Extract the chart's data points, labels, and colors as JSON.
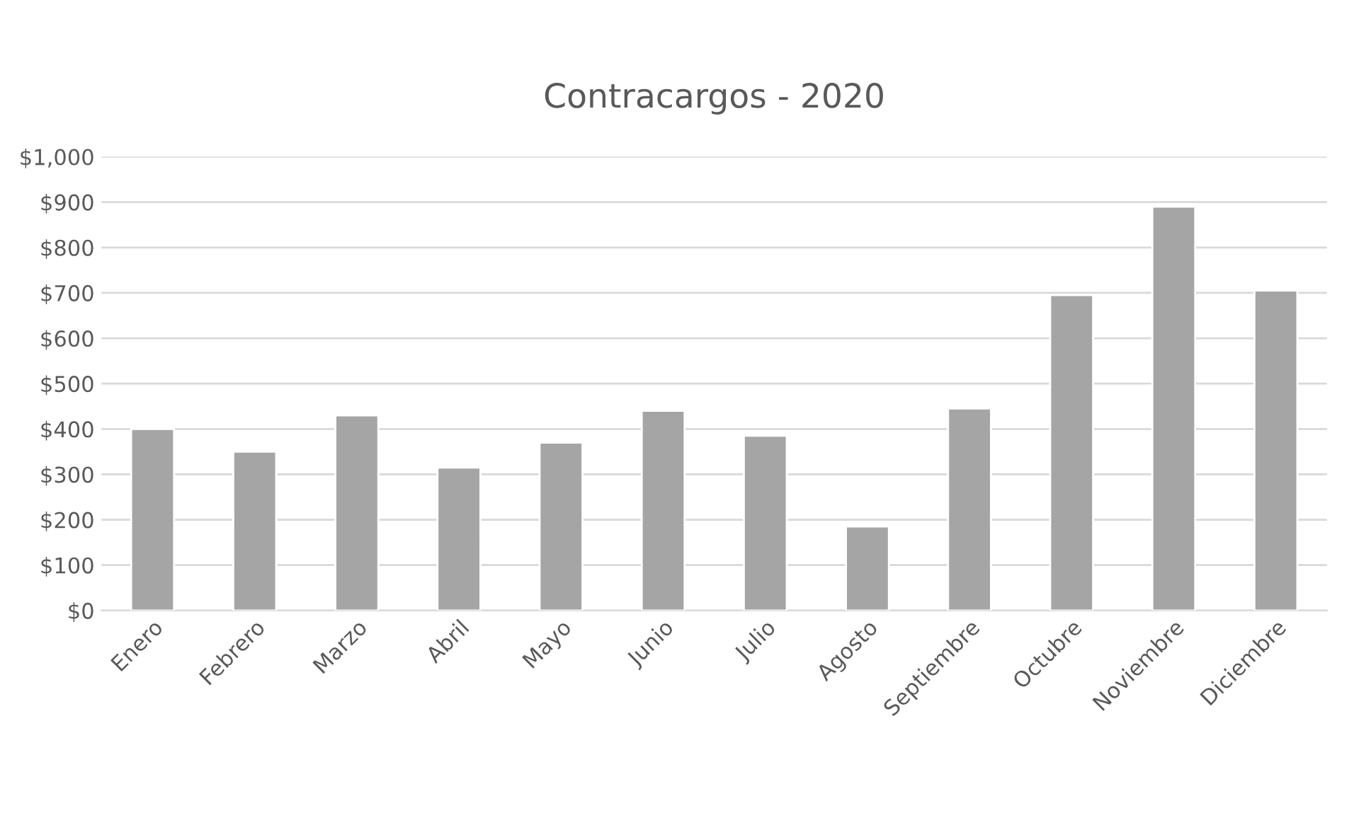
{
  "chart_data": {
    "type": "bar",
    "title": "Contracargos - 2020",
    "categories": [
      "Enero",
      "Febrero",
      "Marzo",
      "Abril",
      "Mayo",
      "Junio",
      "Julio",
      "Agosto",
      "Septiembre",
      "Octubre",
      "Noviembre",
      "Diciembre"
    ],
    "series": [
      {
        "color": "#a5a5a5",
        "values": [
          400,
          350,
          430,
          315,
          370,
          440,
          385,
          185,
          445,
          695,
          890,
          705
        ]
      }
    ],
    "ylim": [
      0,
      1000
    ],
    "yticks": [
      {
        "value": 0,
        "label": "$0"
      },
      {
        "value": 100,
        "label": "$100"
      },
      {
        "value": 200,
        "label": "$200"
      },
      {
        "value": 300,
        "label": "$300"
      },
      {
        "value": 400,
        "label": "$400"
      },
      {
        "value": 500,
        "label": "$500"
      },
      {
        "value": 600,
        "label": "$600"
      },
      {
        "value": 700,
        "label": "$700"
      },
      {
        "value": 800,
        "label": "$800"
      },
      {
        "value": 900,
        "label": "$900"
      },
      {
        "value": 1000,
        "label": "$1,000"
      }
    ],
    "grid": "y"
  }
}
